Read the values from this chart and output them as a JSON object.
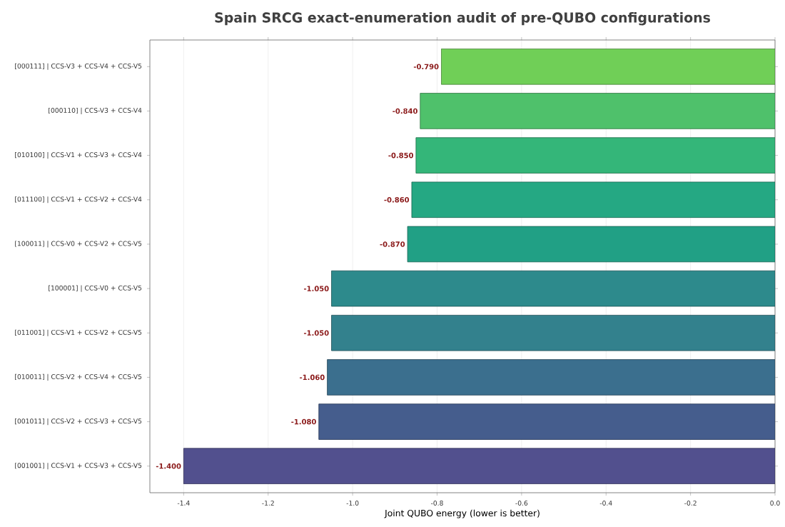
{
  "chart_data": {
    "type": "bar",
    "orientation": "horizontal",
    "title": "Spain SRCG exact-enumeration audit of pre-QUBO configurations",
    "xlabel": "Joint QUBO energy (lower is better)",
    "categories": [
      "[000111] | CCS-V3 + CCS-V4 + CCS-V5",
      "[000110] | CCS-V3 + CCS-V4",
      "[010100] | CCS-V1 + CCS-V3 + CCS-V4",
      "[011100] | CCS-V1 + CCS-V2 + CCS-V4",
      "[100011] | CCS-V0 + CCS-V2 + CCS-V5",
      "[100001] | CCS-V0 + CCS-V5",
      "[011001] | CCS-V1 + CCS-V2 + CCS-V5",
      "[010011] | CCS-V2 + CCS-V4 + CCS-V5",
      "[001011] | CCS-V2 + CCS-V3 + CCS-V5",
      "[001001] | CCS-V1 + CCS-V3 + CCS-V5"
    ],
    "values": [
      -0.79,
      -0.84,
      -0.85,
      -0.86,
      -0.87,
      -1.05,
      -1.05,
      -1.06,
      -1.08,
      -1.4
    ],
    "value_labels": [
      "-0.790",
      "-0.840",
      "-0.850",
      "-0.860",
      "-0.870",
      "-1.050",
      "-1.050",
      "-1.060",
      "-1.080",
      "-1.400"
    ],
    "colors": [
      "#70cf57",
      "#4fc16b",
      "#34b679",
      "#25a883",
      "#21a085",
      "#2d8a8c",
      "#33818d",
      "#3b6f8e",
      "#455d8d",
      "#52508e"
    ],
    "xlim": [
      -1.48,
      0
    ],
    "xticks": [
      -1.4,
      -1.2,
      {
        "value": -1,
        "label": "-1.0"
      },
      -0.8,
      -0.6,
      -0.4,
      -0.2,
      {
        "value": 0,
        "label": "0.0"
      }
    ],
    "grid": "x"
  }
}
